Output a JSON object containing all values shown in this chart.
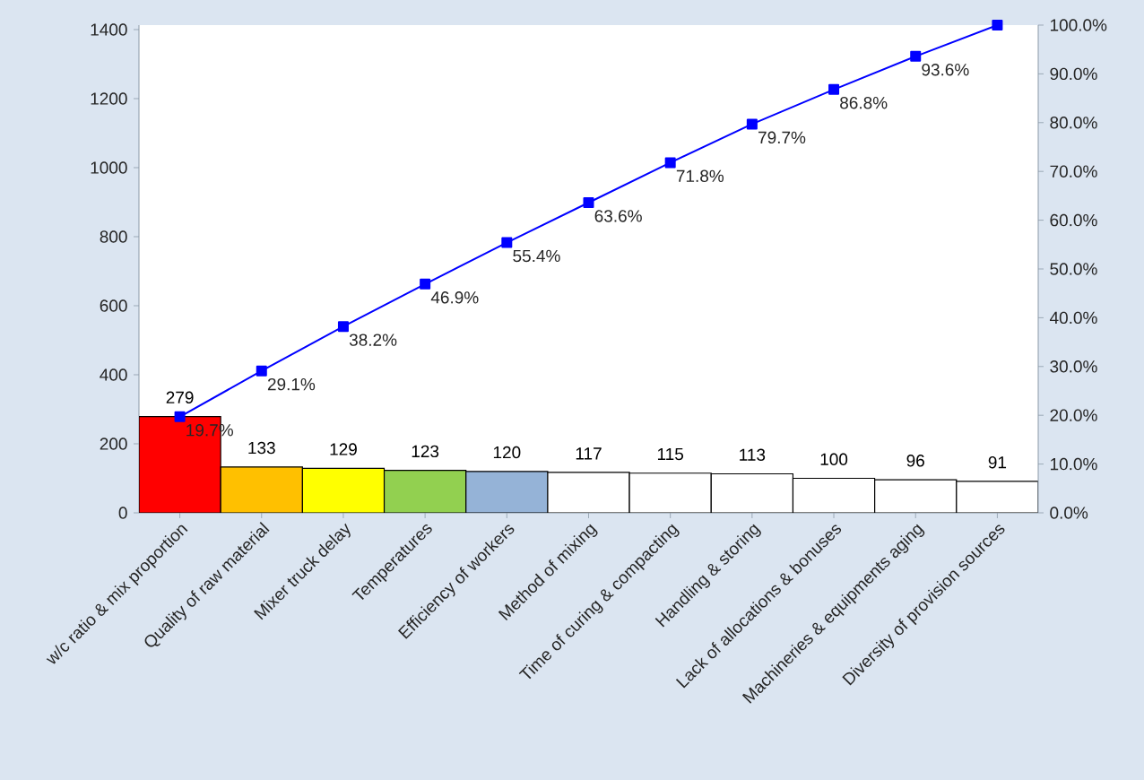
{
  "chart_data": {
    "type": "bar",
    "categories": [
      "w/c ratio & mix proportion",
      "Quality of raw material",
      "Mixer truck delay",
      "Temperatures",
      "Efficiency of workers",
      "Method of mixing",
      "Time of curing & compacting",
      "Handling & storing",
      "Lack of allocations &  bonuses",
      "Machineries & equipments aging",
      "Diversity of provision sources"
    ],
    "series": [
      {
        "values": [
          279,
          133,
          129,
          123,
          120,
          117,
          115,
          113,
          100,
          96,
          91
        ],
        "colors": [
          "#ff0000",
          "#ffc000",
          "#ffff00",
          "#92d050",
          "#95b3d7",
          "#ffffff",
          "#ffffff",
          "#ffffff",
          "#ffffff",
          "#ffffff",
          "#ffffff"
        ]
      },
      {
        "type": "line",
        "axis": "y2",
        "color": "#0000ff",
        "values": [
          19.7,
          29.1,
          38.2,
          46.9,
          55.4,
          63.6,
          71.8,
          79.7,
          86.8,
          93.6,
          100.0
        ],
        "value_labels": [
          "19.7%",
          "29.1%",
          "38.2%",
          "46.9%",
          "55.4%",
          "63.6%",
          "71.8%",
          "79.7%",
          "86.8%",
          "93.6%",
          null
        ]
      }
    ],
    "data_labels": true,
    "marker": "square",
    "grid": false,
    "ylim": [
      0,
      1413
    ],
    "yticks": [
      0,
      200,
      400,
      600,
      800,
      1000,
      1200,
      1400
    ],
    "y2lim": [
      0,
      100
    ],
    "y2ticks": [
      {
        "value": 0,
        "label": "0.0%"
      },
      {
        "value": 10,
        "label": "10.0%"
      },
      {
        "value": 20,
        "label": "20.0%"
      },
      {
        "value": 30,
        "label": "30.0%"
      },
      {
        "value": 40,
        "label": "40.0%"
      },
      {
        "value": 50,
        "label": "50.0%"
      },
      {
        "value": 60,
        "label": "60.0%"
      },
      {
        "value": 70,
        "label": "70.0%"
      },
      {
        "value": 80,
        "label": "80.0%"
      },
      {
        "value": 90,
        "label": "90.0%"
      },
      {
        "value": 100,
        "label": "100.0%"
      }
    ]
  }
}
